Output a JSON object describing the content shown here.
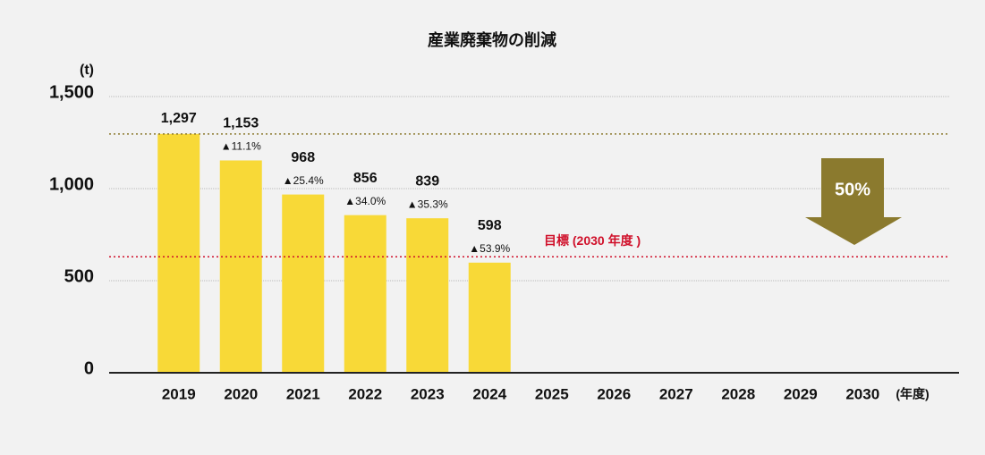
{
  "chart_data": {
    "type": "bar",
    "title": "産業廃棄物の削減",
    "y_unit": "(t)",
    "x_unit": "(年度)",
    "categories": [
      "2019",
      "2020",
      "2021",
      "2022",
      "2023",
      "2024",
      "2025",
      "2026",
      "2027",
      "2028",
      "2029",
      "2030"
    ],
    "values": [
      1297,
      1153,
      968,
      856,
      839,
      598,
      null,
      null,
      null,
      null,
      null,
      null
    ],
    "value_labels": [
      "1,297",
      "1,153",
      "968",
      "856",
      "839",
      "598",
      null,
      null,
      null,
      null,
      null,
      null
    ],
    "change_labels": [
      null,
      "▲11.1%",
      "▲25.4%",
      "▲34.0%",
      "▲35.3%",
      "▲53.9%",
      null,
      null,
      null,
      null,
      null,
      null
    ],
    "color": "#f8d937",
    "ylim": [
      0,
      1500
    ],
    "yticks": [
      0,
      500,
      {
        "value": 1000,
        "label": "1,000"
      },
      {
        "value": 1500,
        "label": "1,500"
      }
    ],
    "grid": true,
    "reference_lines": [
      {
        "value": 1297,
        "color": "#8b7a2e"
      },
      {
        "value": 630,
        "color": "#d0102a",
        "label": "目標 (2030 年度 )"
      }
    ],
    "arrow_label": "50%",
    "arrow_color": "#8b7a2e"
  }
}
